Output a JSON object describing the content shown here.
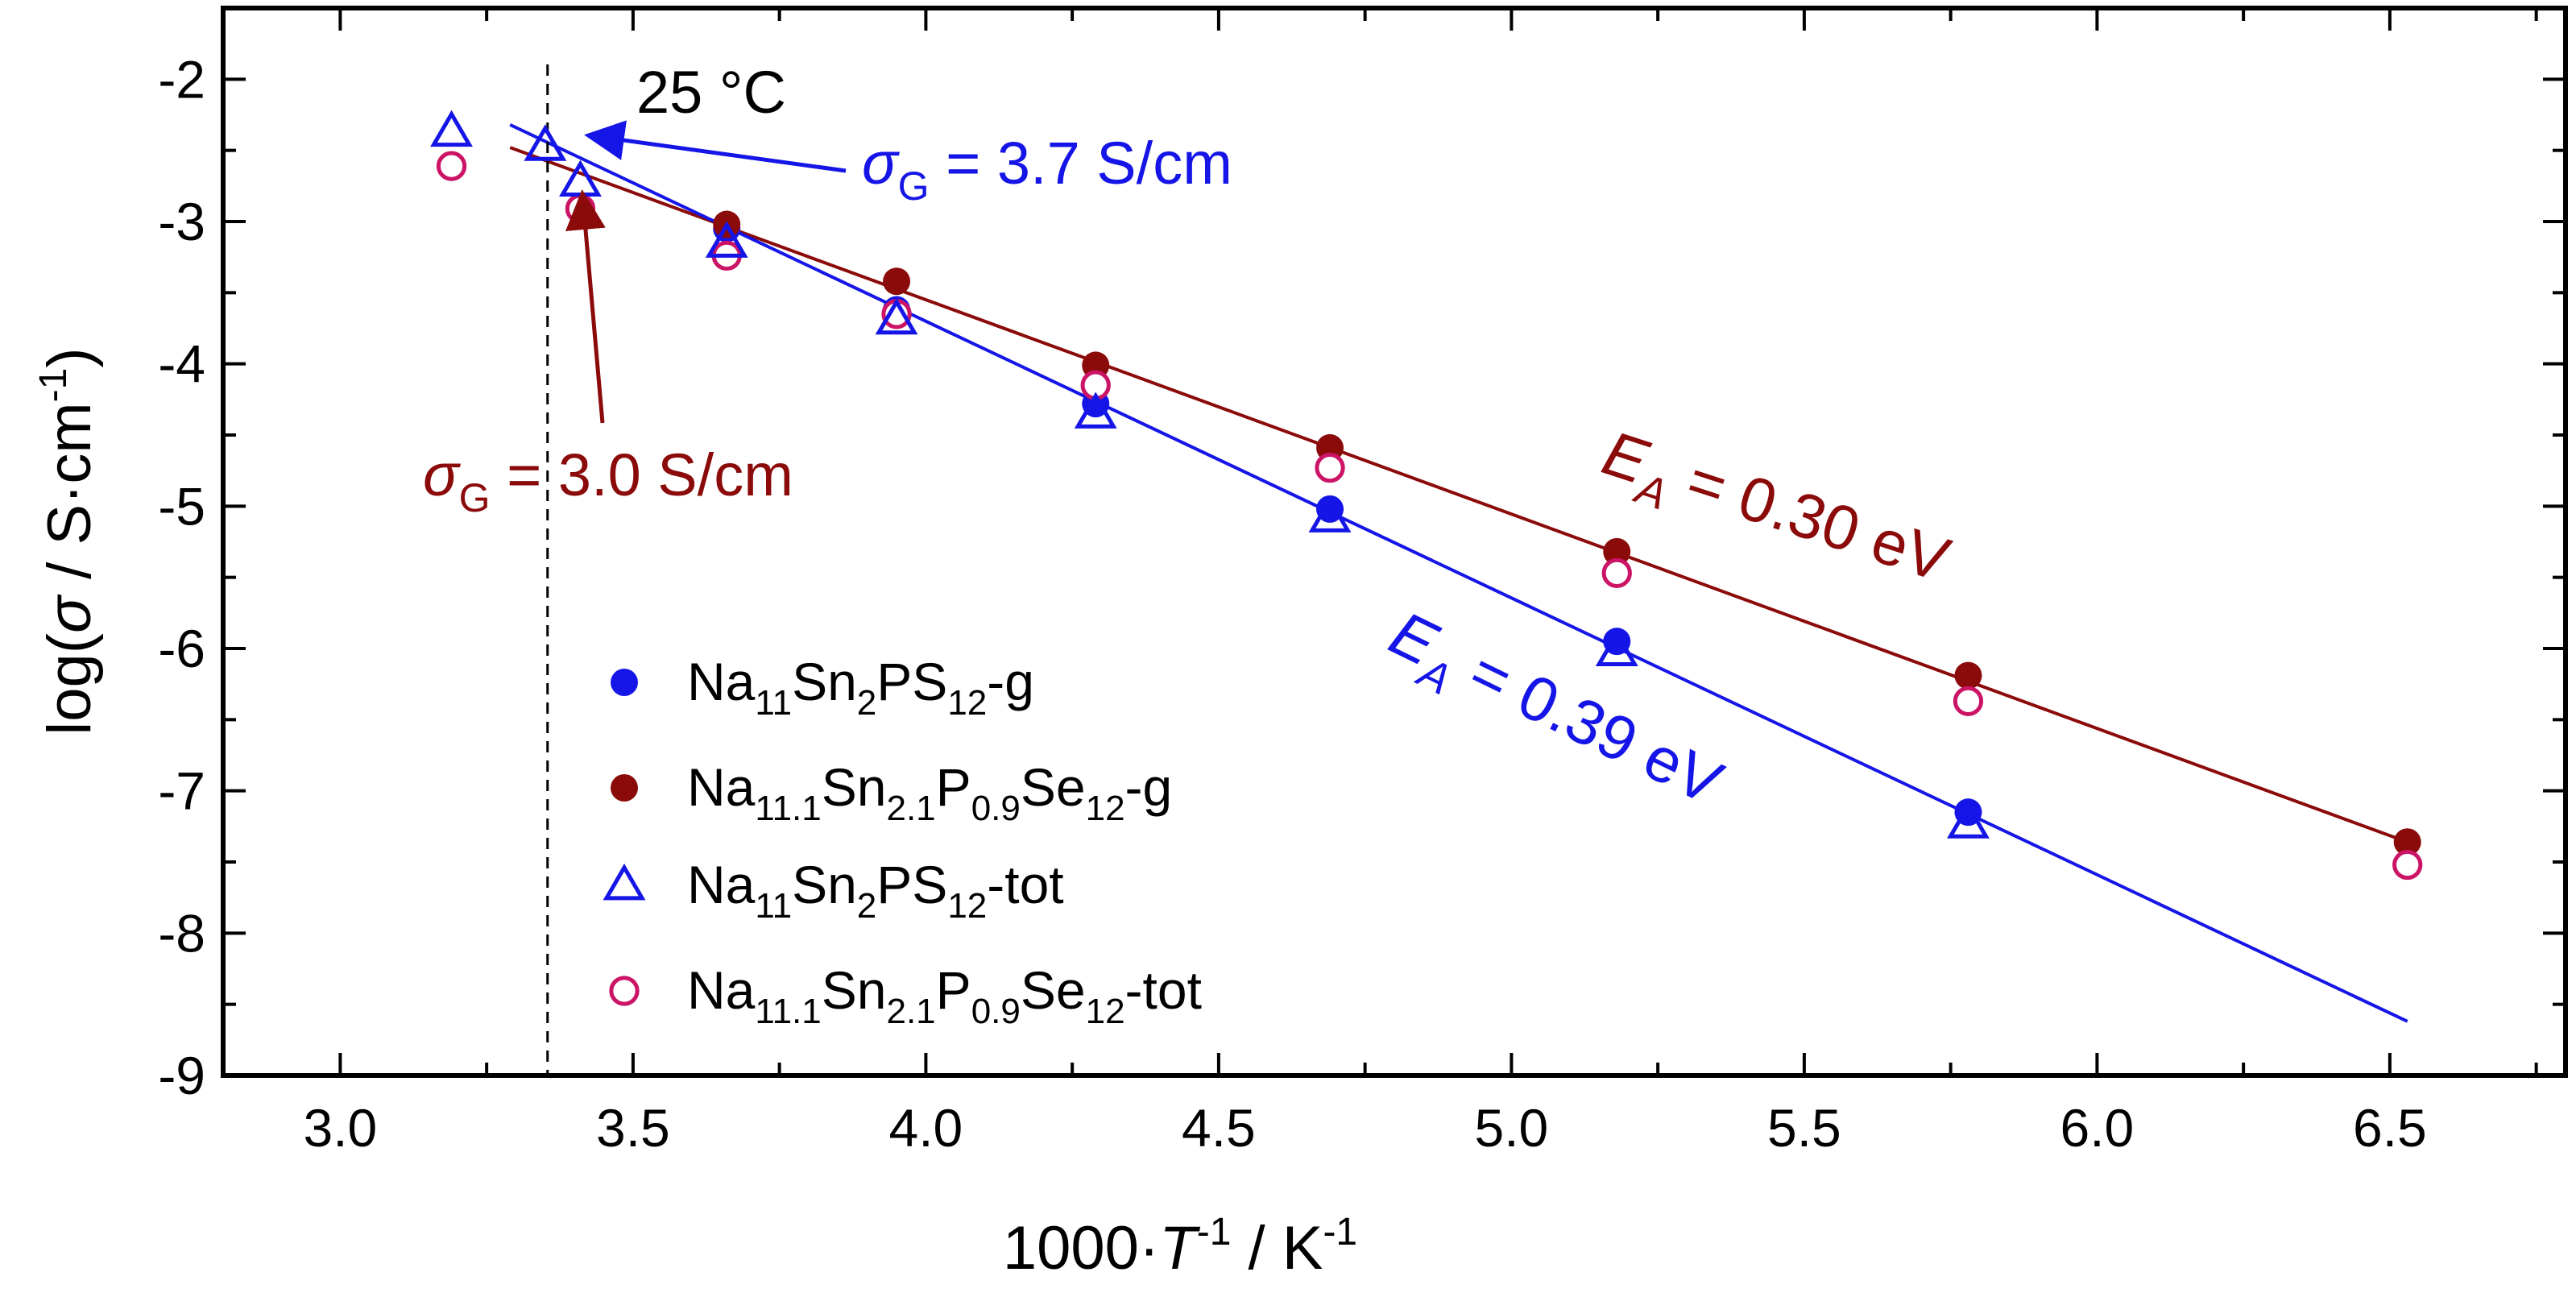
{
  "chart_data": {
    "type": "scatter",
    "xlabel_parts": [
      "1000·",
      "T",
      "-1",
      " / K",
      "-1"
    ],
    "ylabel_parts": [
      "log(",
      "σ",
      " / S·cm",
      "-1",
      ")"
    ],
    "xlim": [
      2.8,
      6.8
    ],
    "ylim": [
      -9,
      -1.5
    ],
    "xticks": [
      3.0,
      3.5,
      4.0,
      4.5,
      5.0,
      5.5,
      6.0,
      6.5
    ],
    "yticks": [
      -2,
      -3,
      -4,
      -5,
      -6,
      -7,
      -8,
      -9
    ],
    "xtick_labels": [
      "3.0",
      "3.5",
      "4.0",
      "4.5",
      "5.0",
      "5.5",
      "6.0",
      "6.5"
    ],
    "ytick_labels": [
      "-2",
      "-3",
      "-4",
      "-5",
      "-6",
      "-7",
      "-8",
      "-9"
    ],
    "grid": false,
    "legend_position": "lower-left",
    "colors": {
      "blue": "#1515e8",
      "darkred": "#8b0a0a",
      "magenta": "#cc1466"
    },
    "series": [
      {
        "legend_parts": [
          [
            "Na",
            ""
          ],
          [
            "11",
            "sub"
          ],
          [
            "Sn",
            ""
          ],
          [
            "2",
            "sub"
          ],
          [
            "PS",
            ""
          ],
          [
            "12",
            "sub"
          ],
          [
            "-g",
            ""
          ]
        ],
        "marker": "filled-circle",
        "color": "#1515e8",
        "x": [
          3.66,
          3.95,
          4.29,
          4.69,
          5.18,
          5.78
        ],
        "y": [
          -3.05,
          -3.62,
          -4.28,
          -5.02,
          -5.95,
          -7.15
        ]
      },
      {
        "legend_parts": [
          [
            "Na",
            ""
          ],
          [
            "11.1",
            "sub"
          ],
          [
            "Sn",
            ""
          ],
          [
            "2.1",
            "sub"
          ],
          [
            "P",
            ""
          ],
          [
            "0.9",
            "sub"
          ],
          [
            "Se",
            ""
          ],
          [
            "12",
            "sub"
          ],
          [
            "-g",
            ""
          ]
        ],
        "marker": "filled-circle",
        "color": "#8b0a0a",
        "x": [
          3.66,
          3.95,
          4.29,
          4.69,
          5.18,
          5.78,
          6.53
        ],
        "y": [
          -3.02,
          -3.42,
          -4.01,
          -4.59,
          -5.32,
          -6.19,
          -7.36
        ]
      },
      {
        "legend_parts": [
          [
            " Na",
            ""
          ],
          [
            "11",
            "sub"
          ],
          [
            "Sn",
            ""
          ],
          [
            "2",
            "sub"
          ],
          [
            "PS",
            ""
          ],
          [
            "12",
            "sub"
          ],
          [
            "-tot",
            ""
          ]
        ],
        "marker": "open-triangle",
        "color": "#1515e8",
        "x": [
          3.19,
          3.35,
          3.41,
          3.66,
          3.95,
          4.29,
          4.69,
          5.18,
          5.78
        ],
        "y": [
          -2.37,
          -2.47,
          -2.72,
          -3.15,
          -3.69,
          -4.35,
          -5.08,
          -6.02,
          -7.23
        ]
      },
      {
        "legend_parts": [
          [
            "Na",
            ""
          ],
          [
            "11.1",
            "sub"
          ],
          [
            "Sn",
            ""
          ],
          [
            "2.1",
            "sub"
          ],
          [
            "P",
            ""
          ],
          [
            "0.9",
            "sub"
          ],
          [
            "Se",
            ""
          ],
          [
            "12",
            "sub"
          ],
          [
            "-tot",
            ""
          ]
        ],
        "marker": "open-circle",
        "color": "#cc1466",
        "x": [
          3.19,
          3.41,
          3.66,
          3.95,
          4.29,
          4.69,
          5.18,
          5.78,
          6.53
        ],
        "y": [
          -2.61,
          -2.91,
          -3.24,
          -3.65,
          -4.15,
          -4.73,
          -5.47,
          -6.37,
          -7.52
        ]
      }
    ],
    "fit_lines": [
      {
        "color": "#8b0a0a",
        "x": [
          3.29,
          6.53
        ],
        "y": [
          -2.48,
          -7.36
        ]
      },
      {
        "color": "#1515e8",
        "x": [
          3.29,
          6.53
        ],
        "y": [
          -2.32,
          -8.62
        ]
      }
    ],
    "vline": {
      "x": 3.354,
      "style": "dashed"
    },
    "annotations": {
      "temp_label": "25 °C",
      "sigma_blue": {
        "sym": "σ",
        "sub": "G",
        "text": " = 3.7 S/cm",
        "color": "#1515e8"
      },
      "sigma_red": {
        "sym": "σ",
        "sub": "G",
        "text": " = 3.0 S/cm",
        "color": "#8b0a0a"
      },
      "ea_red": {
        "sym": "E",
        "sub": "A",
        "text": " = 0.30 eV",
        "color": "#8b0a0a"
      },
      "ea_blue": {
        "sym": "E",
        "sub": "A",
        "text": " = 0.39 eV",
        "color": "#1515e8"
      }
    }
  }
}
